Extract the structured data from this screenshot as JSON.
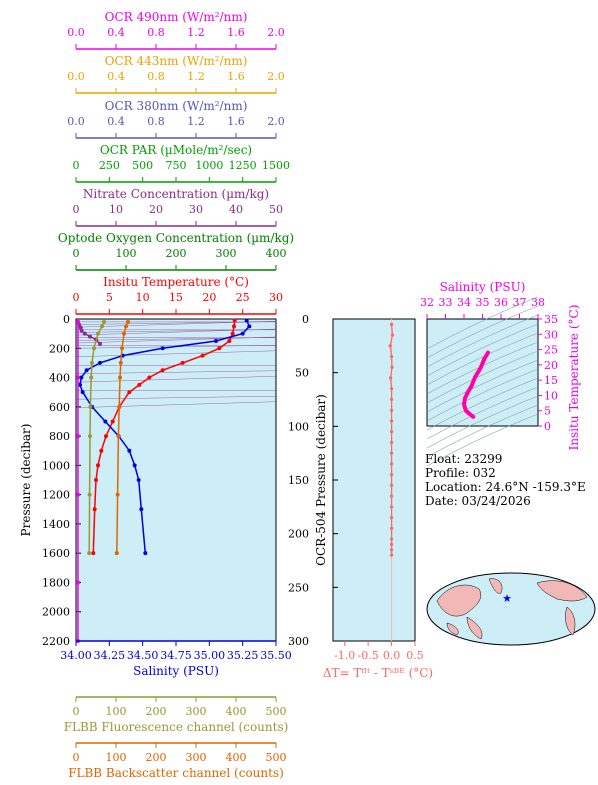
{
  "colors": {
    "ocr490": "#ee00ee",
    "ocr443": "#f0a000",
    "ocr380": "#5555bb",
    "par": "#00a000",
    "nitrate": "#8c2b8c",
    "oxygen": "#008000",
    "temp": "#ff0000",
    "sal": "#0000dd",
    "fluor": "#999933",
    "bscat": "#dd6600",
    "dt": "#ff6666",
    "panel": "#cdeef6"
  },
  "top_axes": [
    {
      "id": "ocr490",
      "title": "OCR 490nm (W/m²/nm)",
      "ticks": [
        "0.0",
        "0.4",
        "0.8",
        "1.2",
        "1.6",
        "2.0"
      ]
    },
    {
      "id": "ocr443",
      "title": "OCR 443nm (W/m²/nm)",
      "ticks": [
        "0.0",
        "0.4",
        "0.8",
        "1.2",
        "1.6",
        "2.0"
      ]
    },
    {
      "id": "ocr380",
      "title": "OCR 380nm (W/m²/nm)",
      "ticks": [
        "0.0",
        "0.4",
        "0.8",
        "1.2",
        "1.6",
        "2.0"
      ]
    },
    {
      "id": "par",
      "title": "OCR PAR (µMole/m²/sec)",
      "ticks": [
        "0",
        "250",
        "500",
        "750",
        "1000",
        "1250",
        "1500"
      ]
    },
    {
      "id": "nitrate",
      "title": "Nitrate Concentration (µm/kg)",
      "ticks": [
        "0",
        "10",
        "20",
        "30",
        "40",
        "50"
      ]
    },
    {
      "id": "oxygen",
      "title": "Optode Oxygen Concentration (µm/kg)",
      "ticks": [
        "0",
        "100",
        "200",
        "300",
        "400"
      ]
    },
    {
      "id": "temp",
      "title": "Insitu Temperature (°C)",
      "ticks": [
        "0",
        "5",
        "10",
        "15",
        "20",
        "25",
        "30"
      ]
    }
  ],
  "bottom_axes": [
    {
      "id": "sal",
      "title": "Salinity (PSU)",
      "ticks": [
        "34.00",
        "34.25",
        "34.50",
        "34.75",
        "35.00",
        "35.25",
        "35.50"
      ]
    },
    {
      "id": "fluor",
      "title": "FLBB Fluorescence channel (counts)",
      "ticks": [
        "0",
        "100",
        "200",
        "300",
        "400",
        "500"
      ]
    },
    {
      "id": "bscat",
      "title": "FLBB Backscatter channel (counts)",
      "ticks": [
        "0",
        "100",
        "200",
        "300",
        "400",
        "500"
      ]
    }
  ],
  "pressure_axis": {
    "title": "Pressure (decibar)",
    "ticks": [
      "0",
      "200",
      "400",
      "600",
      "800",
      "1000",
      "1200",
      "1400",
      "1600",
      "1800",
      "2000",
      "2200"
    ]
  },
  "dt_panel": {
    "left_title": "OCR-504 Pressure (decibar)",
    "left_ticks": [
      "0",
      "50",
      "100",
      "150",
      "200",
      "250",
      "300"
    ],
    "xticks": [
      "-1.0",
      "-0.5",
      "0.0",
      "0.5"
    ],
    "xlabel": "ΔT= Tᶠˡᵗ - Tˢᴮᴱ (°C)"
  },
  "ts_panel": {
    "top_title": "Salinity (PSU)",
    "top_ticks": [
      "32",
      "33",
      "34",
      "35",
      "36",
      "37",
      "38"
    ],
    "right_title": "Insitu Temperature (°C)",
    "right_ticks": [
      "0",
      "5",
      "10",
      "15",
      "20",
      "25",
      "30",
      "35"
    ]
  },
  "info": {
    "float": "Float:  23299",
    "profile": "Profile:  032",
    "location": "Location:  24.6°N  -159.3°E",
    "date": "Date:  03/24/2026"
  },
  "chart_data": [
    {
      "type": "line",
      "name": "main-profile",
      "ylim": [
        0,
        2200
      ],
      "series": [
        {
          "name": "Insitu Temperature",
          "xlim": [
            0,
            30
          ],
          "x": [
            23.8,
            23.7,
            23.5,
            23.0,
            21.5,
            19.0,
            16.0,
            13.0,
            11.0,
            9.5,
            8.0,
            6.5,
            5.5,
            4.5,
            3.8,
            3.3,
            3.0,
            2.8,
            2.6
          ],
          "y": [
            10,
            50,
            100,
            150,
            200,
            250,
            300,
            350,
            400,
            450,
            500,
            600,
            700,
            800,
            900,
            1000,
            1100,
            1300,
            1600
          ]
        },
        {
          "name": "Salinity",
          "xlim": [
            34.0,
            35.5
          ],
          "x": [
            35.28,
            35.3,
            35.25,
            35.05,
            34.65,
            34.35,
            34.18,
            34.08,
            34.04,
            34.03,
            34.05,
            34.12,
            34.22,
            34.32,
            34.4,
            34.44,
            34.47,
            34.49,
            34.52
          ],
          "y": [
            10,
            50,
            100,
            150,
            200,
            250,
            300,
            350,
            400,
            450,
            500,
            600,
            700,
            800,
            900,
            1000,
            1100,
            1300,
            1600
          ]
        },
        {
          "name": "Nitrate",
          "xlim": [
            0,
            50
          ],
          "x": [
            0.5,
            0.8,
            1.2,
            1.4,
            2.2,
            3.5,
            5.0,
            6.0
          ],
          "y": [
            20,
            40,
            60,
            80,
            100,
            120,
            140,
            170
          ]
        },
        {
          "name": "Fluorescence",
          "xlim": [
            0,
            500
          ],
          "x": [
            70,
            65,
            55,
            45,
            40,
            38,
            36,
            35,
            34,
            33
          ],
          "y": [
            20,
            50,
            100,
            200,
            300,
            400,
            600,
            800,
            1200,
            1600
          ]
        },
        {
          "name": "Backscatter",
          "xlim": [
            0,
            500
          ],
          "x": [
            130,
            125,
            120,
            115,
            112,
            110,
            108,
            106,
            104,
            102
          ],
          "y": [
            20,
            50,
            100,
            200,
            300,
            400,
            600,
            800,
            1200,
            1600
          ]
        },
        {
          "name": "OCR 490nm",
          "xlim": [
            0,
            2
          ],
          "x": [
            0.02,
            0.02,
            0.02,
            0.02,
            0.02,
            0.02
          ],
          "y": [
            20,
            400,
            800,
            1200,
            1800,
            2200
          ]
        }
      ]
    },
    {
      "type": "scatter",
      "name": "delta-t",
      "xlim": [
        -1.25,
        0.5
      ],
      "ylim": [
        0,
        300
      ],
      "x": [
        0.0,
        0.02,
        -0.03,
        0.0,
        0.01,
        -0.02,
        0.0,
        0.0,
        0.0,
        0.0,
        0.0,
        0.0,
        0.0,
        0.0,
        0.0,
        0.0,
        0.0,
        0.0,
        0.0,
        0.0,
        0.0,
        0.0,
        0.0,
        0.0
      ],
      "y": [
        5,
        15,
        25,
        35,
        45,
        55,
        65,
        75,
        85,
        95,
        105,
        115,
        125,
        135,
        145,
        155,
        165,
        175,
        185,
        195,
        205,
        210,
        215,
        220
      ]
    },
    {
      "type": "line",
      "name": "ts-diagram",
      "xlim": [
        32,
        38
      ],
      "ylim": [
        0,
        35
      ],
      "x": [
        35.3,
        35.1,
        34.9,
        34.6,
        34.4,
        34.2,
        34.05,
        34.0,
        34.1,
        34.3,
        34.5
      ],
      "y": [
        24,
        22,
        19,
        16,
        13,
        11,
        9,
        7,
        5,
        4,
        3
      ]
    }
  ]
}
